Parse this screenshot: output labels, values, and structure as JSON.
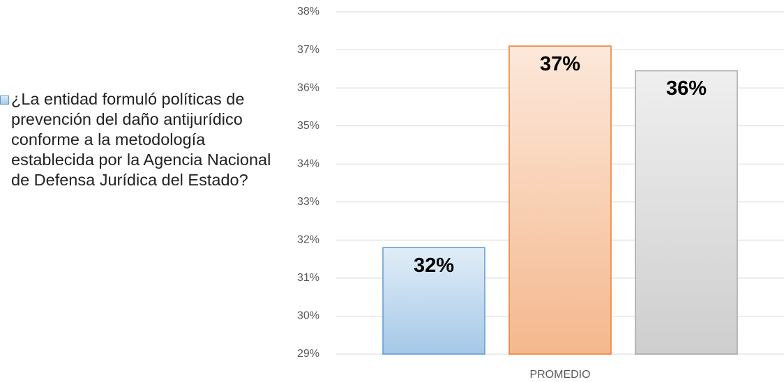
{
  "chart_data": {
    "type": "bar",
    "categories": [
      "PROMEDIO"
    ],
    "series": [
      {
        "name": "¿La entidad formuló políticas de prevención del daño antijurídico conforme a la metodología establecida por la Agencia Nacional de Defensa Jurídica del Estado?",
        "color": "#5b9bd5",
        "values": [
          31.8
        ],
        "value_labels": [
          "32%"
        ]
      },
      {
        "color": "#ed7d31",
        "values": [
          37.1
        ],
        "value_labels": [
          "37%"
        ]
      },
      {
        "color": "#a5a5a5",
        "values": [
          36.45
        ],
        "value_labels": [
          "36%"
        ]
      }
    ],
    "ylim": [
      29,
      38
    ],
    "yticks": [
      {
        "value": 29,
        "label": "29%"
      },
      {
        "value": 30,
        "label": "30%"
      },
      {
        "value": 31,
        "label": "31%"
      },
      {
        "value": 32,
        "label": "32%"
      },
      {
        "value": 33,
        "label": "33%"
      },
      {
        "value": 34,
        "label": "34%"
      },
      {
        "value": 35,
        "label": "35%"
      },
      {
        "value": 36,
        "label": "36%"
      },
      {
        "value": 37,
        "label": "37%"
      },
      {
        "value": 38,
        "label": "38%"
      }
    ],
    "grid": true,
    "legend": "left"
  }
}
